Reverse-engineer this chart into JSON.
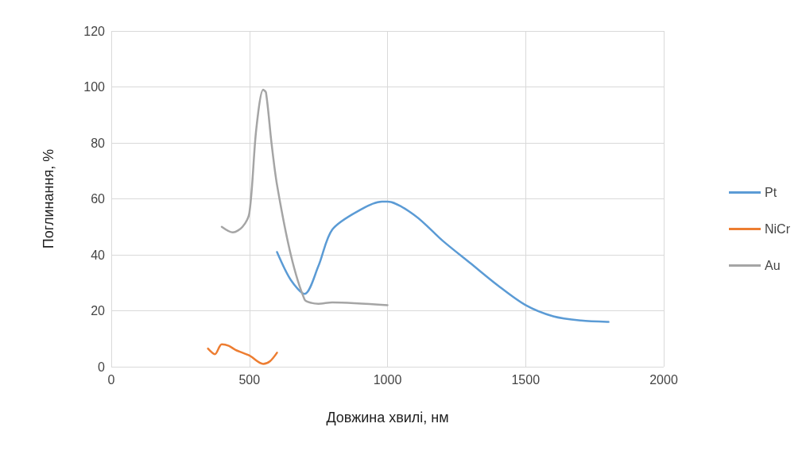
{
  "chart_data": {
    "type": "line",
    "xlabel": "Довжина хвилі, нм",
    "ylabel": "Поглинання, %",
    "xlim": [
      0,
      2000
    ],
    "xticks": [
      0,
      500,
      1000,
      1500,
      2000
    ],
    "ylim": [
      0,
      120
    ],
    "yticks": [
      0,
      20,
      40,
      60,
      80,
      100,
      120
    ],
    "grid": true,
    "legend": "right",
    "marker": "none",
    "line_style": "solid",
    "series": [
      {
        "name": "Pt",
        "color": "#5b9bd5",
        "x": [
          600,
          650,
          700,
          750,
          800,
          900,
          980,
          1000,
          1100,
          1200,
          1300,
          1400,
          1500,
          1600,
          1700,
          1800
        ],
        "values": [
          41,
          31,
          26,
          36,
          49,
          56,
          59,
          59,
          54,
          45,
          37,
          29,
          22,
          18,
          16.5,
          16
        ]
      },
      {
        "name": "NiCr",
        "color": "#ed7d31",
        "x": [
          350,
          375,
          400,
          425,
          450,
          500,
          550,
          575,
          600
        ],
        "values": [
          6.5,
          4.5,
          8,
          7.5,
          6,
          4,
          1,
          2,
          5
        ]
      },
      {
        "name": "Au",
        "color": "#a5a5a5",
        "x": [
          400,
          440,
          475,
          500,
          525,
          550,
          560,
          580,
          600,
          650,
          700,
          725,
          750,
          800,
          1000
        ],
        "values": [
          50,
          48,
          50,
          55,
          85,
          99,
          98,
          80,
          65,
          40,
          24,
          22.8,
          22.5,
          23,
          22
        ]
      }
    ]
  }
}
